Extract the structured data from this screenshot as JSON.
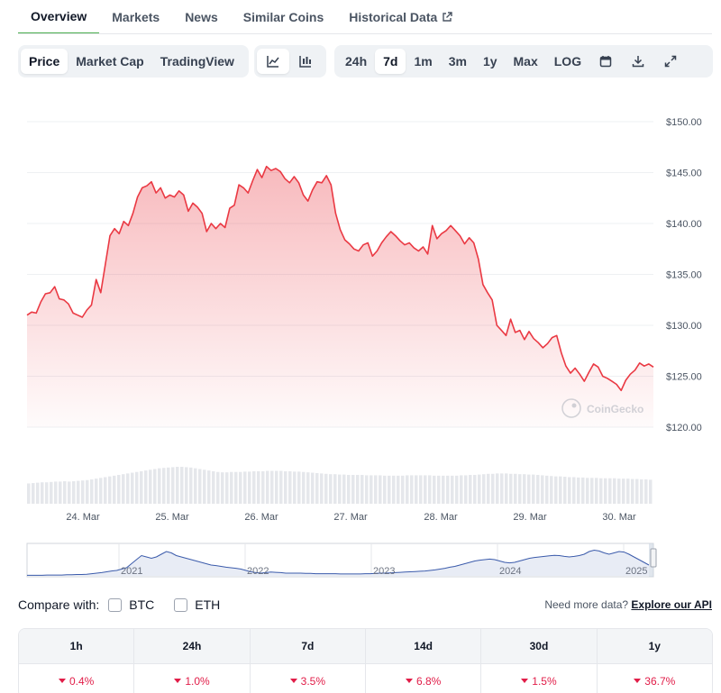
{
  "tabs": [
    {
      "label": "Overview",
      "active": true
    },
    {
      "label": "Markets"
    },
    {
      "label": "News"
    },
    {
      "label": "Similar Coins"
    },
    {
      "label": "Historical Data",
      "icon": "external-link-icon"
    }
  ],
  "chart_type_tabs": [
    {
      "label": "Price",
      "active": true
    },
    {
      "label": "Market Cap"
    },
    {
      "label": "TradingView"
    }
  ],
  "chart_style_buttons": [
    {
      "icon": "line-chart-icon",
      "active": true
    },
    {
      "icon": "candlestick-icon"
    }
  ],
  "range_tabs": [
    {
      "label": "24h"
    },
    {
      "label": "7d",
      "active": true
    },
    {
      "label": "1m"
    },
    {
      "label": "3m"
    },
    {
      "label": "1y"
    },
    {
      "label": "Max"
    },
    {
      "label": "LOG"
    }
  ],
  "range_icons": [
    "calendar-icon",
    "download-icon",
    "expand-icon"
  ],
  "watermark": "CoinGecko",
  "chart_data": {
    "type": "area",
    "y_ticks": [
      "$150.00",
      "$145.00",
      "$140.00",
      "$135.00",
      "$130.00",
      "$125.00",
      "$120.00"
    ],
    "ylim": [
      120,
      150
    ],
    "x_ticks": [
      "24. Mar",
      "25. Mar",
      "26. Mar",
      "27. Mar",
      "28. Mar",
      "29. Mar",
      "30. Mar"
    ],
    "line_color": "#ea3943",
    "series": [
      {
        "values": [
          131.0,
          131.3,
          131.2,
          132.3,
          133.1,
          133.2,
          133.8,
          132.6,
          132.5,
          132.1,
          131.2,
          131.0,
          130.8,
          131.5,
          132.0,
          134.5,
          133.2,
          136.0,
          138.8,
          139.5,
          139.0,
          140.2,
          139.8,
          141.0,
          142.6,
          143.5,
          143.7,
          144.1,
          143.0,
          143.5,
          142.5,
          142.8,
          142.6,
          143.2,
          142.8,
          141.2,
          142.0,
          141.6,
          141.0,
          139.2,
          140.0,
          139.5,
          140.0,
          139.6,
          141.5,
          141.8,
          143.8,
          143.5,
          143.0,
          144.2,
          145.3,
          144.5,
          145.6,
          145.2,
          145.4,
          145.1,
          144.4,
          144.0,
          144.6,
          144.0,
          142.8,
          142.2,
          143.3,
          144.1,
          144.0,
          144.7,
          143.8,
          141.0,
          139.4,
          138.4,
          138.0,
          137.5,
          137.3,
          137.9,
          138.1,
          136.8,
          137.3,
          138.1,
          138.7,
          139.2,
          138.8,
          138.3,
          137.9,
          138.1,
          137.6,
          137.3,
          137.7,
          137.0,
          139.8,
          138.5,
          139.0,
          139.3,
          139.8,
          139.3,
          138.8,
          138.0,
          138.6,
          138.1,
          136.5,
          134.0,
          133.2,
          132.5,
          130.0,
          129.5,
          129.0,
          130.6,
          129.3,
          129.5,
          128.6,
          129.4,
          128.7,
          128.3,
          127.8,
          128.2,
          128.8,
          129.0,
          127.3,
          126.0,
          125.3,
          125.8,
          125.2,
          124.5,
          125.4,
          126.2,
          125.9,
          125.0,
          124.8,
          124.5,
          124.2,
          123.6,
          124.6,
          125.2,
          125.6,
          126.3,
          126.0,
          126.2,
          125.9
        ]
      }
    ],
    "volume_values": [
      0.55,
      0.56,
      0.57,
      0.58,
      0.58,
      0.59,
      0.6,
      0.6,
      0.61,
      0.6,
      0.61,
      0.62,
      0.63,
      0.64,
      0.66,
      0.68,
      0.7,
      0.72,
      0.74,
      0.76,
      0.78,
      0.8,
      0.82,
      0.84,
      0.86,
      0.88,
      0.9,
      0.92,
      0.94,
      0.96,
      0.97,
      0.98,
      0.99,
      1.0,
      1.0,
      0.99,
      0.98,
      0.96,
      0.94,
      0.92,
      0.9,
      0.88,
      0.86,
      0.85,
      0.85,
      0.86,
      0.86,
      0.86,
      0.87,
      0.87,
      0.88,
      0.88,
      0.88,
      0.89,
      0.89,
      0.89,
      0.89,
      0.88,
      0.88,
      0.87,
      0.87,
      0.86,
      0.85,
      0.84,
      0.83,
      0.82,
      0.81,
      0.8,
      0.8,
      0.79,
      0.79,
      0.78,
      0.78,
      0.78,
      0.78,
      0.77,
      0.77,
      0.77,
      0.77,
      0.76,
      0.76,
      0.76,
      0.76,
      0.76,
      0.77,
      0.77,
      0.77,
      0.77,
      0.77,
      0.77,
      0.76,
      0.76,
      0.76,
      0.76,
      0.76,
      0.76,
      0.77,
      0.77,
      0.78,
      0.78,
      0.79,
      0.8,
      0.81,
      0.81,
      0.82,
      0.82,
      0.82,
      0.81,
      0.81,
      0.8,
      0.8,
      0.79,
      0.79,
      0.78,
      0.77,
      0.76,
      0.75,
      0.74,
      0.74,
      0.73,
      0.72,
      0.72,
      0.71,
      0.71,
      0.7,
      0.7,
      0.7,
      0.69,
      0.69,
      0.69,
      0.69,
      0.68,
      0.68,
      0.68,
      0.67,
      0.67,
      0.66,
      0.66,
      0.65
    ],
    "navigator": {
      "x_ticks": [
        "2021",
        "2022",
        "2023",
        "2024",
        "2025"
      ],
      "values": [
        0.02,
        0.02,
        0.02,
        0.02,
        0.03,
        0.03,
        0.03,
        0.03,
        0.04,
        0.04,
        0.05,
        0.05,
        0.06,
        0.08,
        0.1,
        0.12,
        0.15,
        0.18,
        0.2,
        0.25,
        0.3,
        0.45,
        0.6,
        0.75,
        0.7,
        0.65,
        0.7,
        0.8,
        0.9,
        0.85,
        0.75,
        0.7,
        0.65,
        0.6,
        0.55,
        0.5,
        0.45,
        0.4,
        0.38,
        0.35,
        0.32,
        0.3,
        0.28,
        0.25,
        0.2,
        0.15,
        0.12,
        0.1,
        0.12,
        0.14,
        0.13,
        0.12,
        0.1,
        0.1,
        0.1,
        0.1,
        0.09,
        0.09,
        0.08,
        0.08,
        0.08,
        0.08,
        0.08,
        0.07,
        0.07,
        0.07,
        0.07,
        0.07,
        0.08,
        0.08,
        0.09,
        0.1,
        0.1,
        0.11,
        0.12,
        0.13,
        0.14,
        0.15,
        0.16,
        0.17,
        0.18,
        0.2,
        0.22,
        0.25,
        0.28,
        0.32,
        0.35,
        0.4,
        0.45,
        0.5,
        0.55,
        0.58,
        0.6,
        0.62,
        0.6,
        0.55,
        0.5,
        0.48,
        0.5,
        0.55,
        0.6,
        0.65,
        0.68,
        0.7,
        0.72,
        0.74,
        0.76,
        0.75,
        0.72,
        0.7,
        0.72,
        0.75,
        0.8,
        0.9,
        0.95,
        0.92,
        0.85,
        0.8,
        0.85,
        0.9,
        0.88,
        0.8,
        0.7,
        0.6,
        0.5,
        0.4
      ]
    }
  },
  "compare": {
    "label": "Compare with:",
    "options": [
      {
        "label": "BTC"
      },
      {
        "label": "ETH"
      }
    ]
  },
  "more_data": {
    "text": "Need more data?",
    "link": "Explore our API"
  },
  "performance": [
    {
      "period": "1h",
      "change": "0.4%"
    },
    {
      "period": "24h",
      "change": "1.0%"
    },
    {
      "period": "7d",
      "change": "3.5%"
    },
    {
      "period": "14d",
      "change": "6.8%"
    },
    {
      "period": "30d",
      "change": "1.5%"
    },
    {
      "period": "1y",
      "change": "36.7%"
    }
  ]
}
